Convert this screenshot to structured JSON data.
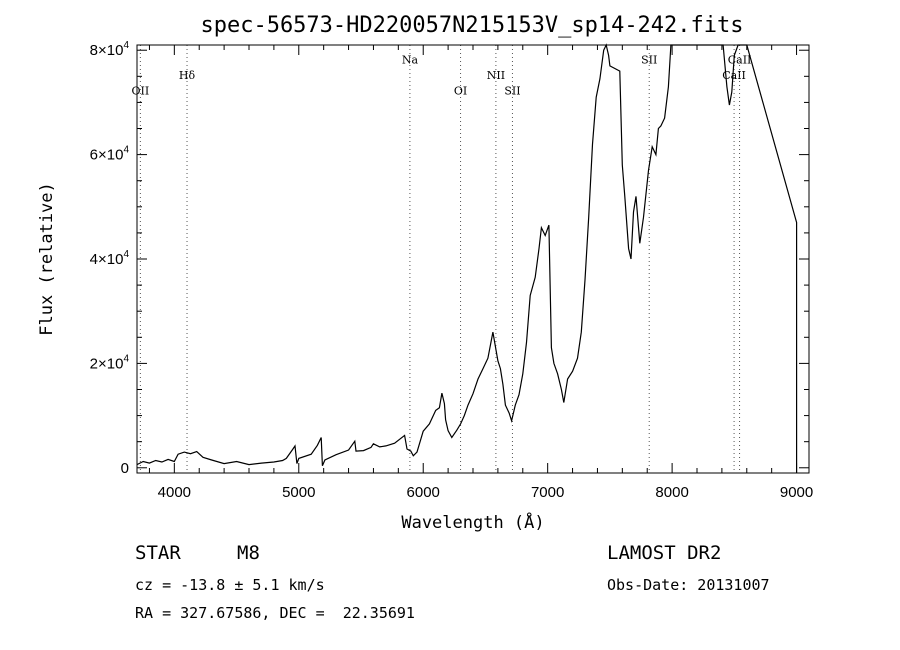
{
  "chart_data": {
    "type": "line",
    "title": "spec-56573-HD220057N215153V_sp14-242.fits",
    "xlabel": "Wavelength (Å)",
    "ylabel": "Flux (relative)",
    "xlim": [
      3700,
      9100
    ],
    "ylim": [
      -1000,
      81000
    ],
    "xticks": [
      4000,
      5000,
      6000,
      7000,
      8000,
      9000
    ],
    "yticks": [
      {
        "value": 0,
        "mant": "0",
        "exp": ""
      },
      {
        "value": 20000,
        "mant": "2×10",
        "exp": "4"
      },
      {
        "value": 40000,
        "mant": "4×10",
        "exp": "4"
      },
      {
        "value": 60000,
        "mant": "6×10",
        "exp": "4"
      },
      {
        "value": 80000,
        "mant": "8×10",
        "exp": "4"
      }
    ],
    "lines": [
      {
        "label": "OII",
        "x": 3727,
        "label_y": 71500
      },
      {
        "label": "Hδ",
        "x": 4102,
        "label_y": 74500
      },
      {
        "label": "Na",
        "x": 5893,
        "label_y": 77500
      },
      {
        "label": "OI",
        "x": 6300,
        "label_y": 71500
      },
      {
        "label": "NII",
        "x": 6584,
        "label_y": 74500
      },
      {
        "label": "SII",
        "x": 6717,
        "label_y": 71500
      },
      {
        "label": "SII",
        "x": 7816,
        "label_y": 77500
      },
      {
        "label": "CaII",
        "x": 8498,
        "label_y": 74500
      },
      {
        "label": "CaII",
        "x": 8542,
        "label_y": 77500
      }
    ],
    "spectrum": [
      [
        3700,
        600
      ],
      [
        3750,
        1200
      ],
      [
        3800,
        900
      ],
      [
        3850,
        1400
      ],
      [
        3900,
        1100
      ],
      [
        3950,
        1600
      ],
      [
        4000,
        1200
      ],
      [
        4030,
        2600
      ],
      [
        4080,
        3000
      ],
      [
        4130,
        2700
      ],
      [
        4180,
        3100
      ],
      [
        4230,
        2000
      ],
      [
        4300,
        1500
      ],
      [
        4400,
        800
      ],
      [
        4500,
        1200
      ],
      [
        4600,
        600
      ],
      [
        4700,
        900
      ],
      [
        4800,
        1100
      ],
      [
        4870,
        1400
      ],
      [
        4900,
        1800
      ],
      [
        4950,
        3500
      ],
      [
        4970,
        4200
      ],
      [
        4985,
        800
      ],
      [
        5000,
        1800
      ],
      [
        5100,
        2600
      ],
      [
        5150,
        4300
      ],
      [
        5180,
        5800
      ],
      [
        5190,
        400
      ],
      [
        5210,
        1500
      ],
      [
        5300,
        2500
      ],
      [
        5400,
        3400
      ],
      [
        5450,
        5100
      ],
      [
        5460,
        3200
      ],
      [
        5520,
        3300
      ],
      [
        5580,
        3900
      ],
      [
        5600,
        4600
      ],
      [
        5650,
        4000
      ],
      [
        5700,
        4200
      ],
      [
        5770,
        4700
      ],
      [
        5850,
        6200
      ],
      [
        5870,
        3600
      ],
      [
        5900,
        3200
      ],
      [
        5920,
        2300
      ],
      [
        5950,
        3000
      ],
      [
        6000,
        7000
      ],
      [
        6050,
        8400
      ],
      [
        6100,
        11000
      ],
      [
        6130,
        11500
      ],
      [
        6150,
        14300
      ],
      [
        6170,
        12300
      ],
      [
        6180,
        9200
      ],
      [
        6200,
        7100
      ],
      [
        6230,
        5800
      ],
      [
        6270,
        7200
      ],
      [
        6300,
        8400
      ],
      [
        6330,
        10000
      ],
      [
        6360,
        12000
      ],
      [
        6400,
        14200
      ],
      [
        6440,
        17000
      ],
      [
        6480,
        19000
      ],
      [
        6520,
        21000
      ],
      [
        6560,
        26000
      ],
      [
        6600,
        20500
      ],
      [
        6620,
        19000
      ],
      [
        6640,
        16000
      ],
      [
        6660,
        12000
      ],
      [
        6690,
        10500
      ],
      [
        6710,
        9000
      ],
      [
        6740,
        12000
      ],
      [
        6770,
        14000
      ],
      [
        6800,
        18000
      ],
      [
        6830,
        24000
      ],
      [
        6860,
        33000
      ],
      [
        6900,
        36500
      ],
      [
        6930,
        42000
      ],
      [
        6950,
        46000
      ],
      [
        6980,
        44500
      ],
      [
        7010,
        46500
      ],
      [
        7030,
        23000
      ],
      [
        7050,
        20000
      ],
      [
        7080,
        18000
      ],
      [
        7110,
        15000
      ],
      [
        7130,
        12500
      ],
      [
        7160,
        17000
      ],
      [
        7200,
        18500
      ],
      [
        7240,
        21000
      ],
      [
        7270,
        26000
      ],
      [
        7300,
        36000
      ],
      [
        7330,
        48000
      ],
      [
        7360,
        62000
      ],
      [
        7390,
        71000
      ],
      [
        7420,
        74500
      ],
      [
        7450,
        80000
      ],
      [
        7470,
        81000
      ],
      [
        7490,
        79000
      ],
      [
        7500,
        77000
      ],
      [
        7580,
        76000
      ],
      [
        7600,
        58000
      ],
      [
        7620,
        52000
      ],
      [
        7650,
        42000
      ],
      [
        7670,
        40000
      ],
      [
        7690,
        49000
      ],
      [
        7710,
        52000
      ],
      [
        7740,
        43000
      ],
      [
        7770,
        48000
      ],
      [
        7810,
        57000
      ],
      [
        7840,
        61500
      ],
      [
        7870,
        60000
      ],
      [
        7890,
        65000
      ],
      [
        7910,
        65500
      ],
      [
        7940,
        67000
      ],
      [
        7970,
        73000
      ],
      [
        7990,
        81000
      ],
      [
        8410,
        81000
      ],
      [
        8440,
        73000
      ],
      [
        8460,
        69500
      ],
      [
        8480,
        72000
      ],
      [
        8500,
        79000
      ],
      [
        8530,
        81000
      ],
      [
        8600,
        81000
      ],
      [
        9000,
        47000
      ],
      [
        9000,
        -1000
      ]
    ]
  },
  "info": {
    "object_class": "STAR",
    "subclass": "M8",
    "redshift": "cz = -13.8 ± 5.1 km/s",
    "coords": "RA = 327.67586, DEC =  22.35691",
    "survey": "LAMOST DR2",
    "obs_date": "Obs-Date: 20131007"
  }
}
